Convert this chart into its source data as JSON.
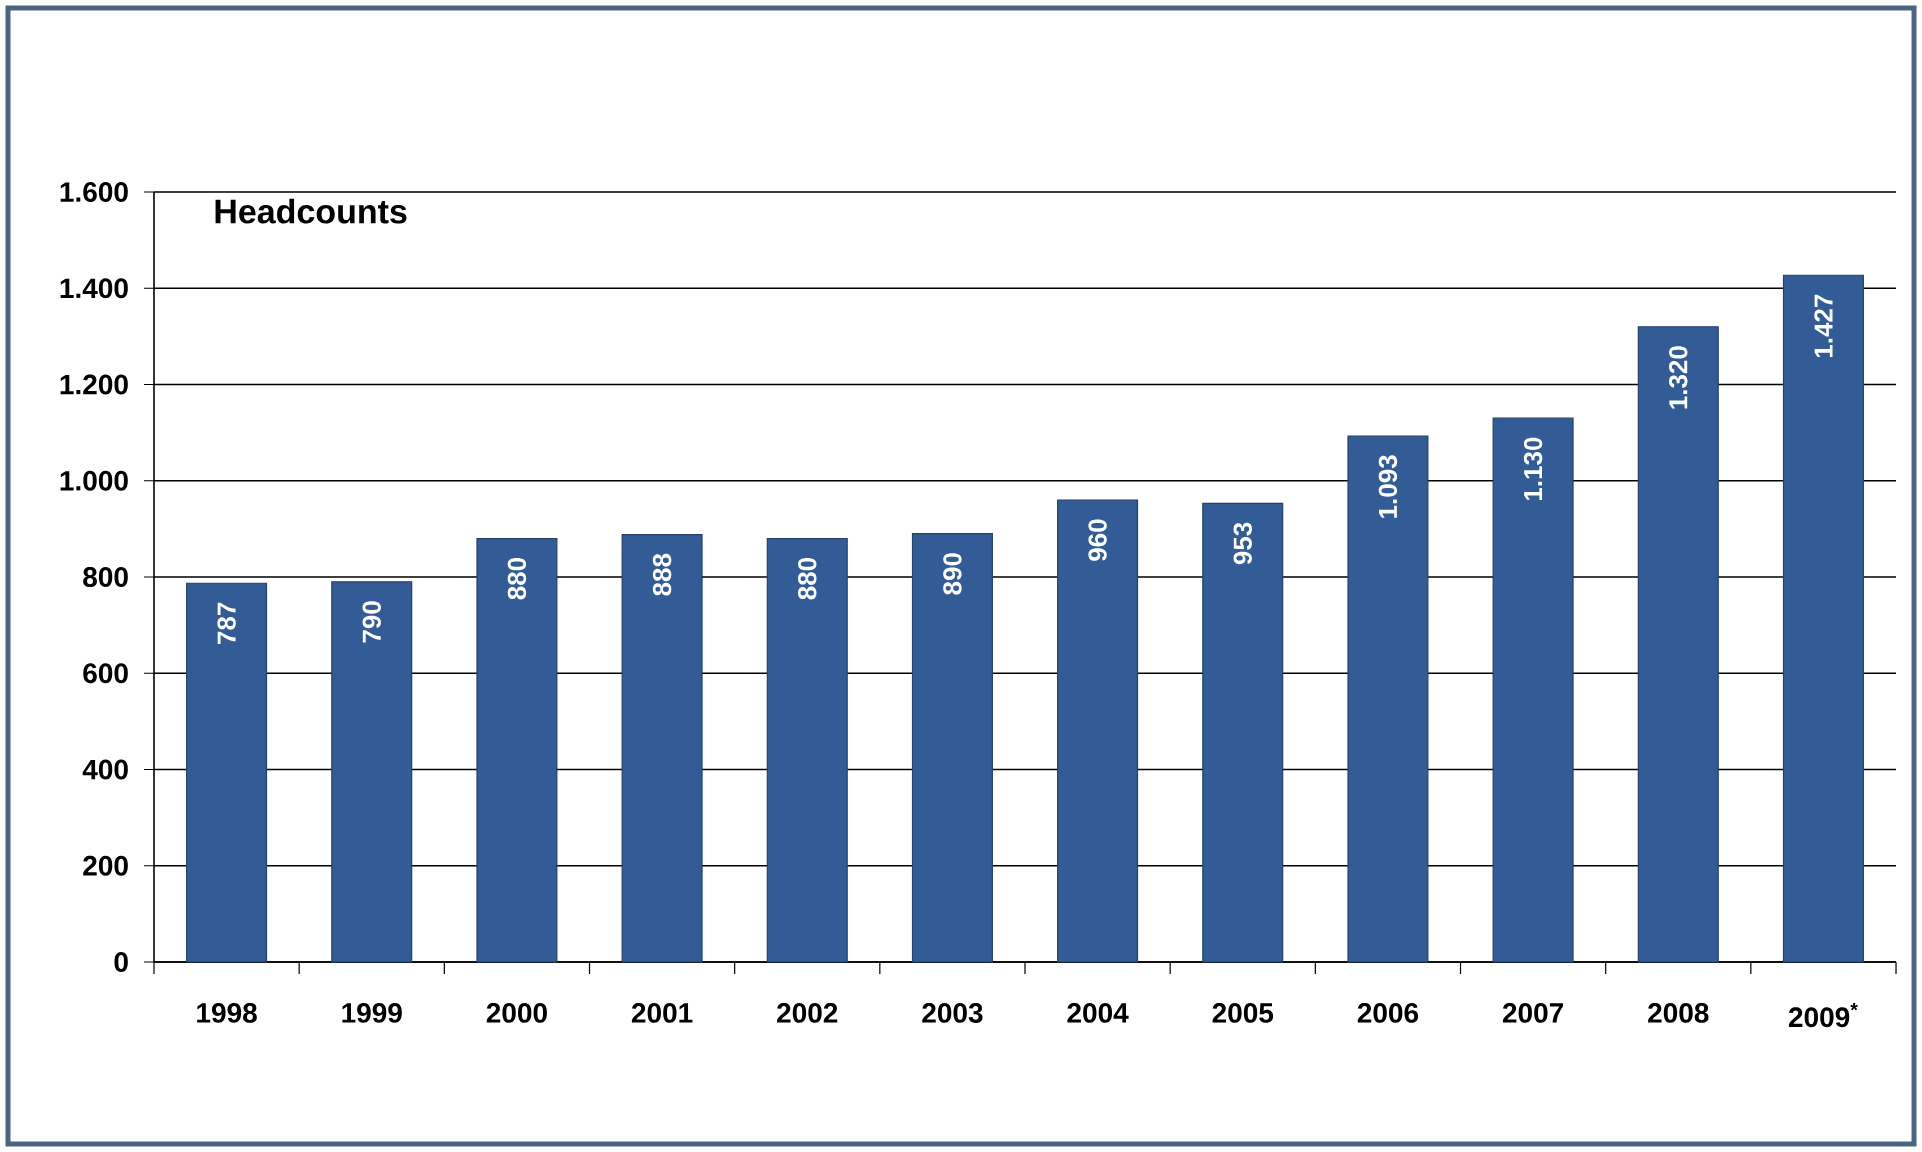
{
  "chart_data": {
    "type": "bar",
    "title": "Headcounts",
    "categories": [
      "1998",
      "1999",
      "2000",
      "2001",
      "2002",
      "2003",
      "2004",
      "2005",
      "2006",
      "2007",
      "2008",
      "2009$^{*}$"
    ],
    "values": [
      787,
      790,
      880,
      888,
      880,
      890,
      960,
      953,
      1093,
      1130,
      1320,
      1427
    ],
    "value_labels": [
      "787",
      "790",
      "880",
      "888",
      "880",
      "890",
      "960",
      "953",
      "1.093",
      "1.130",
      "1.320",
      "1.427"
    ],
    "color": "#335c96",
    "ylim": [
      0,
      1600
    ],
    "yticks": [
      0,
      200,
      400,
      600,
      800,
      {
        "value": 1000,
        "label": "1.000"
      },
      {
        "value": 1200,
        "label": "1.200"
      },
      {
        "value": 1400,
        "label": "1.400"
      },
      {
        "value": 1600,
        "label": "1.600"
      }
    ],
    "grid": "y"
  }
}
